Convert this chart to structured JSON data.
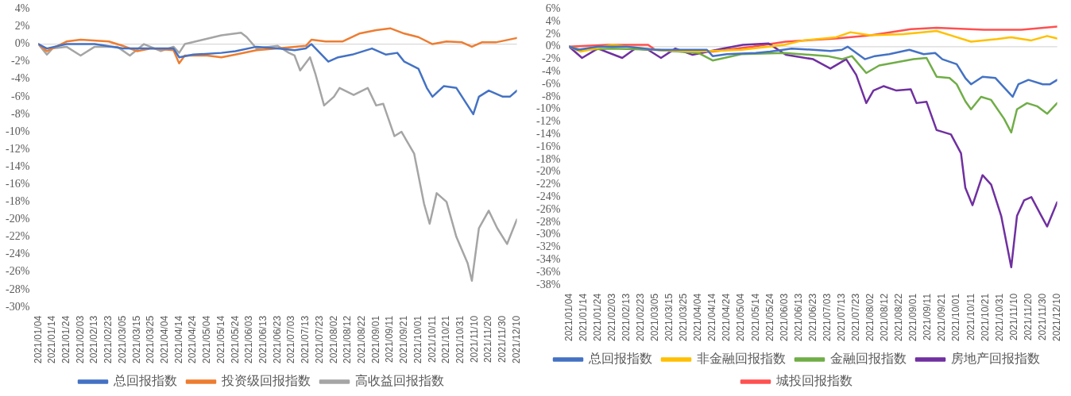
{
  "chart_data": [
    {
      "type": "line",
      "xlim": [
        "2021-01-04",
        "2021-12-10"
      ],
      "ylim": [
        -30,
        4
      ],
      "grid": false,
      "legend": "bottom",
      "marker": "none",
      "line_style": "solid",
      "yticks": [
        {
          "value": 4,
          "label": "4%"
        },
        {
          "value": 2,
          "label": "2%"
        },
        {
          "value": 0,
          "label": "0%"
        },
        {
          "value": -2,
          "label": "-2%"
        },
        {
          "value": -4,
          "label": "-4%"
        },
        {
          "value": -6,
          "label": "-6%"
        },
        {
          "value": -8,
          "label": "-8%"
        },
        {
          "value": -10,
          "label": "-10%"
        },
        {
          "value": -12,
          "label": "-12%"
        },
        {
          "value": -14,
          "label": "-14%"
        },
        {
          "value": -16,
          "label": "-16%"
        },
        {
          "value": -18,
          "label": "-18%"
        },
        {
          "value": -20,
          "label": "-20%"
        },
        {
          "value": -22,
          "label": "-22%"
        },
        {
          "value": -24,
          "label": "-24%"
        },
        {
          "value": -26,
          "label": "-26%"
        },
        {
          "value": -28,
          "label": "-28%"
        },
        {
          "value": -30,
          "label": "-30%"
        }
      ],
      "xticks": [
        {
          "value": "2021-01-04",
          "label": "2021/01/04"
        },
        {
          "value": "2021-01-14",
          "label": "2021/01/14"
        },
        {
          "value": "2021-01-24",
          "label": "2021/01/24"
        },
        {
          "value": "2021-02-03",
          "label": "2021/02/03"
        },
        {
          "value": "2021-02-13",
          "label": "2021/02/13"
        },
        {
          "value": "2021-02-23",
          "label": "2021/02/23"
        },
        {
          "value": "2021-03-05",
          "label": "2021/03/05"
        },
        {
          "value": "2021-03-15",
          "label": "2021/03/15"
        },
        {
          "value": "2021-03-25",
          "label": "2021/03/25"
        },
        {
          "value": "2021-04-04",
          "label": "2021/04/04"
        },
        {
          "value": "2021-04-14",
          "label": "2021/04/14"
        },
        {
          "value": "2021-04-24",
          "label": "2021/04/24"
        },
        {
          "value": "2021-05-04",
          "label": "2021/05/04"
        },
        {
          "value": "2021-05-14",
          "label": "2021/05/14"
        },
        {
          "value": "2021-05-24",
          "label": "2021/05/24"
        },
        {
          "value": "2021-06-03",
          "label": "2021/06/03"
        },
        {
          "value": "2021-06-13",
          "label": "2021/06/13"
        },
        {
          "value": "2021-06-23",
          "label": "2021/06/23"
        },
        {
          "value": "2021-07-03",
          "label": "2021/07/03"
        },
        {
          "value": "2021-07-13",
          "label": "2021/07/13"
        },
        {
          "value": "2021-07-23",
          "label": "2021/07/23"
        },
        {
          "value": "2021-08-02",
          "label": "2021/08/02"
        },
        {
          "value": "2021-08-12",
          "label": "2021/08/12"
        },
        {
          "value": "2021-08-22",
          "label": "2021/08/22"
        },
        {
          "value": "2021-09-01",
          "label": "2021/09/01"
        },
        {
          "value": "2021-09-11",
          "label": "2021/09/11"
        },
        {
          "value": "2021-09-21",
          "label": "2021/09/21"
        },
        {
          "value": "2021-10-01",
          "label": "2021/10/01"
        },
        {
          "value": "2021-10-11",
          "label": "2021/10/11"
        },
        {
          "value": "2021-10-21",
          "label": "2021/10/21"
        },
        {
          "value": "2021-10-31",
          "label": "2021/10/31"
        },
        {
          "value": "2021-11-10",
          "label": "2021/11/10"
        },
        {
          "value": "2021-11-20",
          "label": "2021/11/20"
        },
        {
          "value": "2021-11-30",
          "label": "2021/11/30"
        },
        {
          "value": "2021-12-10",
          "label": "2021/12/10"
        }
      ],
      "ref_lines": [
        {
          "axis": "y",
          "value": 0,
          "color": "#d9d9d9"
        }
      ],
      "series": [
        {
          "name": "总回报指数",
          "color": "#4472c4",
          "x": [
            "2021-01-04",
            "2021-01-10",
            "2021-01-24",
            "2021-02-13",
            "2021-03-05",
            "2021-03-20",
            "2021-04-10",
            "2021-04-14",
            "2021-04-24",
            "2021-05-14",
            "2021-05-24",
            "2021-06-08",
            "2021-06-23",
            "2021-07-05",
            "2021-07-13",
            "2021-07-17",
            "2021-07-29",
            "2021-08-05",
            "2021-08-15",
            "2021-08-29",
            "2021-09-08",
            "2021-09-16",
            "2021-09-21",
            "2021-10-01",
            "2021-10-07",
            "2021-10-11",
            "2021-10-19",
            "2021-10-28",
            "2021-11-09",
            "2021-11-13",
            "2021-11-20",
            "2021-11-30",
            "2021-12-05",
            "2021-12-10"
          ],
          "values": [
            0,
            -0.5,
            0,
            0,
            -0.5,
            -0.5,
            -0.5,
            -1.5,
            -1.2,
            -1,
            -0.8,
            -0.3,
            -0.5,
            -0.7,
            -0.5,
            0,
            -2,
            -1.5,
            -1.2,
            -0.5,
            -1.2,
            -1,
            -2,
            -2.8,
            -5,
            -6,
            -4.8,
            -5,
            -8,
            -6,
            -5.3,
            -6,
            -6,
            -5.3
          ]
        },
        {
          "name": "投资级回报指数",
          "color": "#ed7d31",
          "x": [
            "2021-01-04",
            "2021-01-10",
            "2021-01-24",
            "2021-02-03",
            "2021-02-23",
            "2021-03-05",
            "2021-03-15",
            "2021-03-25",
            "2021-04-10",
            "2021-04-14",
            "2021-04-18",
            "2021-05-04",
            "2021-05-14",
            "2021-05-24",
            "2021-06-08",
            "2021-06-23",
            "2021-07-13",
            "2021-07-17",
            "2021-07-27",
            "2021-08-08",
            "2021-08-20",
            "2021-09-01",
            "2021-09-11",
            "2021-09-21",
            "2021-10-01",
            "2021-10-11",
            "2021-10-21",
            "2021-11-01",
            "2021-11-08",
            "2021-11-15",
            "2021-11-25",
            "2021-12-10"
          ],
          "values": [
            0,
            -0.8,
            0.3,
            0.5,
            0.3,
            -0.2,
            -0.8,
            -0.5,
            -0.7,
            -2.2,
            -1.3,
            -1.3,
            -1.5,
            -1.2,
            -0.7,
            -0.5,
            -0.2,
            0.5,
            0.3,
            0.3,
            1.2,
            1.6,
            1.8,
            1.2,
            0.8,
            0,
            0.3,
            0.2,
            -0.3,
            0.2,
            0.2,
            0.7
          ]
        },
        {
          "name": "高收益回报指数",
          "color": "#a5a5a5",
          "x": [
            "2021-01-04",
            "2021-01-10",
            "2021-01-14",
            "2021-01-24",
            "2021-02-03",
            "2021-02-13",
            "2021-03-01",
            "2021-03-10",
            "2021-03-20",
            "2021-04-01",
            "2021-04-10",
            "2021-04-14",
            "2021-04-18",
            "2021-05-01",
            "2021-05-14",
            "2021-05-28",
            "2021-06-01",
            "2021-06-08",
            "2021-06-23",
            "2021-07-01",
            "2021-07-05",
            "2021-07-09",
            "2021-07-16",
            "2021-07-20",
            "2021-07-26",
            "2021-08-02",
            "2021-08-06",
            "2021-08-16",
            "2021-08-26",
            "2021-09-01",
            "2021-09-06",
            "2021-09-14",
            "2021-09-19",
            "2021-09-28",
            "2021-10-05",
            "2021-10-09",
            "2021-10-14",
            "2021-10-21",
            "2021-10-28",
            "2021-11-05",
            "2021-11-08",
            "2021-11-13",
            "2021-11-20",
            "2021-11-26",
            "2021-12-03",
            "2021-12-10"
          ],
          "values": [
            0,
            -1.2,
            -0.5,
            -0.3,
            -1.3,
            -0.3,
            -0.3,
            -1.3,
            0,
            -0.8,
            -0.3,
            -1,
            0,
            0.5,
            1,
            1.3,
            0.8,
            -0.5,
            -0.2,
            -1,
            -1.3,
            -3,
            -1.5,
            -3.5,
            -7,
            -6,
            -5,
            -5.8,
            -5,
            -7,
            -6.8,
            -10.5,
            -10,
            -12.5,
            -18.2,
            -20.5,
            -17,
            -18,
            -22,
            -25,
            -27,
            -21,
            -19,
            -21,
            -22.8,
            -20
          ]
        }
      ]
    },
    {
      "type": "line",
      "xlim": [
        "2021-01-04",
        "2021-12-10"
      ],
      "ylim": [
        -38,
        6
      ],
      "grid": false,
      "legend": "bottom",
      "marker": "none",
      "line_style": "solid",
      "yticks": [
        {
          "value": 6,
          "label": "6%"
        },
        {
          "value": 4,
          "label": "4%"
        },
        {
          "value": 2,
          "label": "2%"
        },
        {
          "value": 0,
          "label": "0%"
        },
        {
          "value": -2,
          "label": "-2%"
        },
        {
          "value": -4,
          "label": "-4%"
        },
        {
          "value": -6,
          "label": "-6%"
        },
        {
          "value": -8,
          "label": "-8%"
        },
        {
          "value": -10,
          "label": "-10%"
        },
        {
          "value": -12,
          "label": "-12%"
        },
        {
          "value": -14,
          "label": "-14%"
        },
        {
          "value": -16,
          "label": "-16%"
        },
        {
          "value": -18,
          "label": "-18%"
        },
        {
          "value": -20,
          "label": "-20%"
        },
        {
          "value": -22,
          "label": "-22%"
        },
        {
          "value": -24,
          "label": "-24%"
        },
        {
          "value": -26,
          "label": "-26%"
        },
        {
          "value": -28,
          "label": "-28%"
        },
        {
          "value": -30,
          "label": "-30%"
        },
        {
          "value": -32,
          "label": "-32%"
        },
        {
          "value": -34,
          "label": "-34%"
        },
        {
          "value": -36,
          "label": "-36%"
        },
        {
          "value": -38,
          "label": "-38%"
        }
      ],
      "xticks": [
        {
          "value": "2021-01-04",
          "label": "2021/01/04"
        },
        {
          "value": "2021-01-14",
          "label": "2021/01/14"
        },
        {
          "value": "2021-01-24",
          "label": "2021/01/24"
        },
        {
          "value": "2021-02-03",
          "label": "2021/02/03"
        },
        {
          "value": "2021-02-13",
          "label": "2021/02/13"
        },
        {
          "value": "2021-02-23",
          "label": "2021/02/23"
        },
        {
          "value": "2021-03-05",
          "label": "2021/03/05"
        },
        {
          "value": "2021-03-15",
          "label": "2021/03/15"
        },
        {
          "value": "2021-03-25",
          "label": "2021/03/25"
        },
        {
          "value": "2021-04-04",
          "label": "2021/04/04"
        },
        {
          "value": "2021-04-14",
          "label": "2021/04/14"
        },
        {
          "value": "2021-04-24",
          "label": "2021/04/24"
        },
        {
          "value": "2021-05-04",
          "label": "2021/05/04"
        },
        {
          "value": "2021-05-14",
          "label": "2021/05/14"
        },
        {
          "value": "2021-05-24",
          "label": "2021/05/24"
        },
        {
          "value": "2021-06-03",
          "label": "2021/06/03"
        },
        {
          "value": "2021-06-13",
          "label": "2021/06/13"
        },
        {
          "value": "2021-06-23",
          "label": "2021/06/23"
        },
        {
          "value": "2021-07-03",
          "label": "2021/07/03"
        },
        {
          "value": "2021-07-13",
          "label": "2021/07/13"
        },
        {
          "value": "2021-07-23",
          "label": "2021/07/23"
        },
        {
          "value": "2021-08-02",
          "label": "2021/08/02"
        },
        {
          "value": "2021-08-12",
          "label": "2021/08/12"
        },
        {
          "value": "2021-08-22",
          "label": "2021/08/22"
        },
        {
          "value": "2021-09-01",
          "label": "2021/09/01"
        },
        {
          "value": "2021-09-11",
          "label": "2021/09/11"
        },
        {
          "value": "2021-09-21",
          "label": "2021/09/21"
        },
        {
          "value": "2021-10-01",
          "label": "2021/10/01"
        },
        {
          "value": "2021-10-11",
          "label": "2021/10/11"
        },
        {
          "value": "2021-10-21",
          "label": "2021/10/21"
        },
        {
          "value": "2021-10-31",
          "label": "2021/10/31"
        },
        {
          "value": "2021-11-10",
          "label": "2021/11/10"
        },
        {
          "value": "2021-11-20",
          "label": "2021/11/20"
        },
        {
          "value": "2021-11-30",
          "label": "2021/11/30"
        },
        {
          "value": "2021-12-10",
          "label": "2021/12/10"
        }
      ],
      "ref_lines": [
        {
          "axis": "y",
          "value": 0,
          "color": "#d9d9d9"
        }
      ],
      "series": [
        {
          "name": "总回报指数",
          "color": "#4472c4",
          "x": [
            "2021-01-04",
            "2021-01-10",
            "2021-01-24",
            "2021-02-13",
            "2021-03-05",
            "2021-03-20",
            "2021-04-10",
            "2021-04-14",
            "2021-04-24",
            "2021-05-14",
            "2021-05-24",
            "2021-06-08",
            "2021-06-23",
            "2021-07-05",
            "2021-07-13",
            "2021-07-17",
            "2021-07-29",
            "2021-08-05",
            "2021-08-15",
            "2021-08-29",
            "2021-09-08",
            "2021-09-16",
            "2021-09-21",
            "2021-10-01",
            "2021-10-07",
            "2021-10-11",
            "2021-10-19",
            "2021-10-28",
            "2021-11-09",
            "2021-11-13",
            "2021-11-20",
            "2021-11-30",
            "2021-12-05",
            "2021-12-10"
          ],
          "values": [
            0,
            -0.5,
            0,
            0,
            -0.5,
            -0.5,
            -0.5,
            -1.5,
            -1.2,
            -1,
            -0.8,
            -0.3,
            -0.5,
            -0.7,
            -0.5,
            0,
            -2,
            -1.5,
            -1.2,
            -0.5,
            -1.2,
            -1,
            -2,
            -2.8,
            -5,
            -6,
            -4.8,
            -5,
            -8,
            -6,
            -5.3,
            -6,
            -6,
            -5.3
          ]
        },
        {
          "name": "非金融回报指数",
          "color": "#ffc000",
          "x": [
            "2021-01-04",
            "2021-01-12",
            "2021-02-03",
            "2021-03-05",
            "2021-04-04",
            "2021-05-04",
            "2021-06-03",
            "2021-06-16",
            "2021-07-09",
            "2021-07-19",
            "2021-08-02",
            "2021-08-25",
            "2021-09-17",
            "2021-09-27",
            "2021-10-11",
            "2021-10-29",
            "2021-11-08",
            "2021-11-22",
            "2021-12-03",
            "2021-12-10"
          ],
          "values": [
            0,
            -0.8,
            0.3,
            -0.5,
            -0.8,
            -0.5,
            0.3,
            1,
            1.5,
            2.3,
            1.8,
            2,
            2.5,
            1.8,
            0.8,
            1.2,
            1.5,
            1,
            1.7,
            1.3
          ]
        },
        {
          "name": "金融回报指数",
          "color": "#70ad47",
          "x": [
            "2021-01-04",
            "2021-01-12",
            "2021-02-03",
            "2021-03-05",
            "2021-04-04",
            "2021-04-14",
            "2021-05-04",
            "2021-06-03",
            "2021-07-03",
            "2021-07-13",
            "2021-07-20",
            "2021-07-30",
            "2021-08-08",
            "2021-08-20",
            "2021-09-01",
            "2021-09-10",
            "2021-09-17",
            "2021-09-26",
            "2021-10-01",
            "2021-10-07",
            "2021-10-11",
            "2021-10-18",
            "2021-10-25",
            "2021-11-03",
            "2021-11-08",
            "2021-11-12",
            "2021-11-19",
            "2021-11-26",
            "2021-12-03",
            "2021-12-10"
          ],
          "values": [
            0,
            -0.5,
            -0.3,
            -0.5,
            -1,
            -2.2,
            -1.2,
            -1,
            -1.5,
            -2,
            -1.5,
            -4.2,
            -3,
            -2.5,
            -2,
            -1.8,
            -4.8,
            -5,
            -6,
            -8.7,
            -10,
            -8,
            -8.5,
            -11.5,
            -13.7,
            -10,
            -9,
            -9.5,
            -10.7,
            -9
          ]
        },
        {
          "name": "房地产回报指数",
          "color": "#7030a0",
          "x": [
            "2021-01-04",
            "2021-01-13",
            "2021-01-24",
            "2021-02-10",
            "2021-02-19",
            "2021-02-28",
            "2021-03-09",
            "2021-03-19",
            "2021-03-31",
            "2021-04-21",
            "2021-05-05",
            "2021-05-23",
            "2021-06-04",
            "2021-06-23",
            "2021-07-05",
            "2021-07-16",
            "2021-07-23",
            "2021-07-30",
            "2021-08-04",
            "2021-08-11",
            "2021-08-20",
            "2021-08-30",
            "2021-09-03",
            "2021-09-10",
            "2021-09-17",
            "2021-09-27",
            "2021-10-04",
            "2021-10-07",
            "2021-10-12",
            "2021-10-19",
            "2021-10-25",
            "2021-11-01",
            "2021-11-08",
            "2021-11-12",
            "2021-11-17",
            "2021-11-22",
            "2021-11-29",
            "2021-12-03",
            "2021-12-10"
          ],
          "values": [
            0,
            -1.8,
            -0.3,
            -1.8,
            -0.3,
            -0.5,
            -1.8,
            -0.3,
            -1.3,
            -0.3,
            0.3,
            0.5,
            -1.3,
            -2,
            -3.5,
            -2,
            -4.5,
            -9,
            -7,
            -6.3,
            -7,
            -6.8,
            -9,
            -8.8,
            -13.3,
            -14,
            -17,
            -22.5,
            -25.3,
            -20.5,
            -22,
            -27,
            -35.2,
            -27,
            -24.5,
            -24,
            -27,
            -28.7,
            -24.8
          ]
        },
        {
          "name": "城投回报指数",
          "color": "#ff5050",
          "x": [
            "2021-01-04",
            "2021-01-31",
            "2021-02-28",
            "2021-03-05",
            "2021-03-24",
            "2021-04-14",
            "2021-05-12",
            "2021-06-04",
            "2021-07-09",
            "2021-08-02",
            "2021-08-30",
            "2021-09-17",
            "2021-10-20",
            "2021-11-15",
            "2021-12-10"
          ],
          "values": [
            0,
            0.3,
            0.3,
            -0.5,
            -0.8,
            -0.8,
            0,
            0.8,
            1.3,
            1.8,
            2.8,
            3,
            2.7,
            2.7,
            3.2
          ]
        }
      ]
    }
  ]
}
